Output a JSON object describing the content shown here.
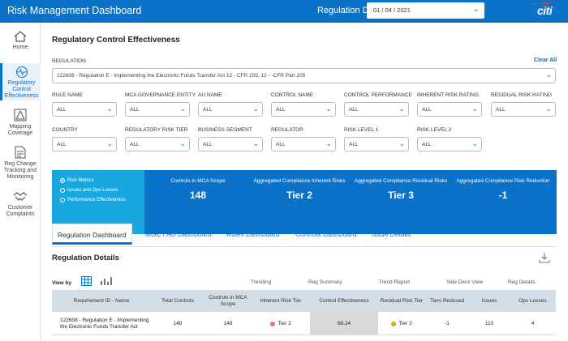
{
  "header": {
    "title": "Risk Management Dashboard",
    "as_of_label": "Regulation Data as of :",
    "as_of_value": "01 / 04 / 2021",
    "brand": "citi"
  },
  "sidebar": {
    "items": [
      {
        "label": "Home",
        "icon": "home-icon"
      },
      {
        "label": "Regulatory Control Effectiveness",
        "icon": "pulse-icon"
      },
      {
        "label": "Mapping Coverage",
        "icon": "warning-icon"
      },
      {
        "label": "Reg Change Tracking and Monitoring",
        "icon": "document-icon"
      },
      {
        "label": "Customer Complaints",
        "icon": "handshake-icon"
      }
    ]
  },
  "page": {
    "title": "Regulatory Control Effectiveness",
    "regulation_label": "REGULATION",
    "clear_all": "Clear All",
    "regulation_value": "122608 - Regulation E - Implementing the Electronic Funds Transfer Act 12 - CFR 205, 12 - -CFR Part 205"
  },
  "filters": [
    {
      "label": "RULE NAME",
      "value": "ALL"
    },
    {
      "label": "MCA GOVERNANCE ENTITY",
      "value": "ALL"
    },
    {
      "label": "AU NAME",
      "value": "ALL"
    },
    {
      "label": "CONTROL NAME",
      "value": "ALL"
    },
    {
      "label": "CONTROL PERFORMANCE",
      "value": "ALL"
    },
    {
      "label": "INHERENT RISK RATING",
      "value": "ALL"
    },
    {
      "label": "RESIDUAL RISK RATING",
      "value": "ALL"
    },
    {
      "label": "COUNTRY",
      "value": "ALL"
    },
    {
      "label": "REGULATORY RISK TIER",
      "value": "ALL"
    },
    {
      "label": "BUSINESS SEGMENT",
      "value": "ALL"
    },
    {
      "label": "REGULATOR",
      "value": "ALL"
    },
    {
      "label": "RISK LEVEL 1",
      "value": "ALL"
    },
    {
      "label": "RISK LEVEL 2",
      "value": "ALL"
    }
  ],
  "metric_options": [
    "Risk Metrics",
    "Issues and Ops Losses",
    "Performance Effectiveness"
  ],
  "kpis": [
    {
      "title": "Controls in MCA Scope",
      "value": "148"
    },
    {
      "title": "Aggregated Compliance Inherent Risks",
      "value": "Tier 2"
    },
    {
      "title": "Aggregated Compliance Residual Risks",
      "value": "Tier 3"
    },
    {
      "title": "Aggregated Compliance Risk Reduction",
      "value": "-1"
    }
  ],
  "tabs": [
    "Regulation Dashboard",
    "MGE / AU Dashboard",
    "Rules Dashboard",
    "Controls Dashboard",
    "Issue Details"
  ],
  "details": {
    "title": "Regulation Details",
    "view_by": "View by",
    "column_links": [
      "Trending",
      "Reg Summary",
      "Trend Report",
      "Side Deck View",
      "Reg Details"
    ]
  },
  "table": {
    "headers": [
      "Requirement ID - Name",
      "Total Controls",
      "Controls in MCA Scope",
      "Inherent Risk Tier",
      "Control Effectiveness",
      "Residual Risk Tier",
      "Tiers Reduced",
      "Issues",
      "Ops Losses"
    ],
    "rows": [
      [
        "122608 - Regulation E - Implementing the Electronic Funds Transfer Act",
        "148",
        "148",
        "Tier 2",
        "68.24",
        "Tier 3",
        "-1",
        "110",
        "4"
      ]
    ]
  },
  "colors": {
    "brand_blue": "#0a72c9",
    "light_blue": "#19a7e0",
    "tier2_dot": "#e57373",
    "tier3_dot": "#c8b400"
  }
}
